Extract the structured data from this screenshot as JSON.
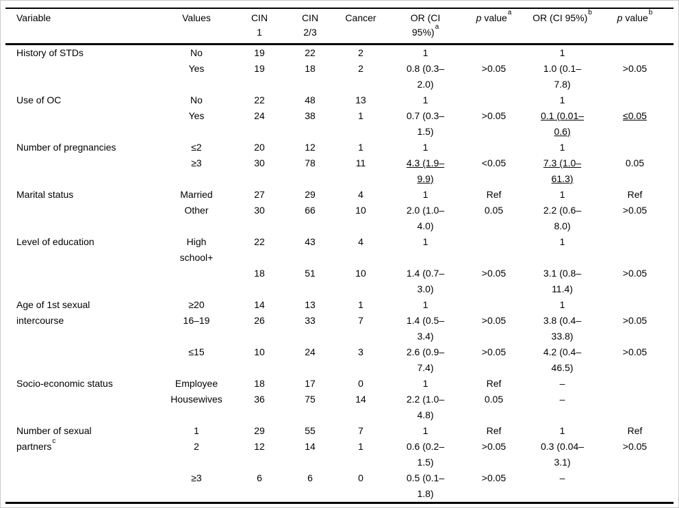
{
  "table": {
    "columns": [
      {
        "label": "Variable"
      },
      {
        "label": "Values"
      },
      {
        "label": "CIN\n1"
      },
      {
        "label": "CIN\n2/3"
      },
      {
        "label": "Cancer"
      },
      {
        "label": "OR (CI\n95%)",
        "sup": "a"
      },
      {
        "italic_prefix": "p",
        "label": " value",
        "sup": "a"
      },
      {
        "label": "OR (CI 95%)",
        "sup": "b"
      },
      {
        "italic_prefix": "p",
        "label": " value",
        "sup": "b"
      }
    ],
    "groups": [
      {
        "variable": {
          "t": "History of STDs"
        },
        "rows": [
          [
            "No",
            "19",
            "22",
            "2",
            "1",
            "",
            "1",
            ""
          ],
          [
            "Yes",
            "19",
            "18",
            "2",
            "0.8 (0.3–\n2.0)",
            ">0.05",
            "1.0 (0.1–\n7.8)",
            ">0.05"
          ]
        ]
      },
      {
        "variable": {
          "t": "Use of OC"
        },
        "rows": [
          [
            "No",
            "22",
            "48",
            "13",
            "1",
            "",
            "1",
            ""
          ],
          [
            "Yes",
            "24",
            "38",
            "1",
            "0.7 (0.3–\n1.5)",
            ">0.05",
            {
              "t": "0.1 (0.01–\n0.6)",
              "u": true
            },
            {
              "t": "≤0.05",
              "u": true
            }
          ]
        ]
      },
      {
        "variable": {
          "t": "Number of pregnancies"
        },
        "rows": [
          [
            "≤2",
            "20",
            "12",
            "1",
            "1",
            "",
            "1",
            ""
          ],
          [
            "≥3",
            "30",
            "78",
            "11",
            {
              "t": "4.3 (1.9–\n9.9)",
              "u": true
            },
            "<0.05",
            {
              "t": "7.3 (1.0–\n61.3)",
              "u": true
            },
            "0.05"
          ]
        ]
      },
      {
        "variable": {
          "t": "Marital status"
        },
        "rows": [
          [
            "Married",
            "27",
            "29",
            "4",
            "1",
            "Ref",
            "1",
            "Ref"
          ],
          [
            "Other",
            "30",
            "66",
            "10",
            "2.0 (1.0–\n4.0)",
            "0.05",
            "2.2 (0.6–\n8.0)",
            ">0.05"
          ]
        ]
      },
      {
        "variable": {
          "t": "Level of education"
        },
        "rows": [
          [
            "High\nschool+",
            "22",
            "43",
            "4",
            "1",
            "",
            "1",
            ""
          ],
          [
            "",
            "18",
            "51",
            "10",
            "1.4 (0.7–\n3.0)",
            ">0.05",
            "3.1 (0.8–\n11.4)",
            ">0.05"
          ]
        ]
      },
      {
        "variable": {
          "t": "Age of 1st sexual\nintercourse"
        },
        "rows": [
          [
            "≥20",
            "14",
            "13",
            "1",
            "1",
            "",
            "1",
            ""
          ],
          [
            "16–19",
            "26",
            "33",
            "7",
            "1.4 (0.5–\n3.4)",
            ">0.05",
            "3.8 (0.4–\n33.8)",
            ">0.05"
          ],
          [
            "≤15",
            "10",
            "24",
            "3",
            "2.6 (0.9–\n7.4)",
            ">0.05",
            "4.2 (0.4–\n46.5)",
            ">0.05"
          ]
        ]
      },
      {
        "variable": {
          "t": "Socio-economic status"
        },
        "rows": [
          [
            "Employee",
            "18",
            "17",
            "0",
            "1",
            "Ref",
            "–",
            ""
          ],
          [
            "Housewives",
            "36",
            "75",
            "14",
            "2.2 (1.0–\n4.8)",
            "0.05",
            "–",
            ""
          ]
        ]
      },
      {
        "variable": {
          "t": "Number of sexual\npartners",
          "sup": "c"
        },
        "rows": [
          [
            "1",
            "29",
            "55",
            "7",
            "1",
            "Ref",
            "1",
            "Ref"
          ],
          [
            "2",
            "12",
            "14",
            "1",
            "0.6 (0.2–\n1.5)",
            ">0.05",
            "0.3 (0.04–\n3.1)",
            ">0.05"
          ],
          [
            "≥3",
            "6",
            "6",
            "0",
            "0.5 (0.1–\n1.8)",
            ">0.05",
            "–",
            ""
          ]
        ]
      }
    ]
  }
}
